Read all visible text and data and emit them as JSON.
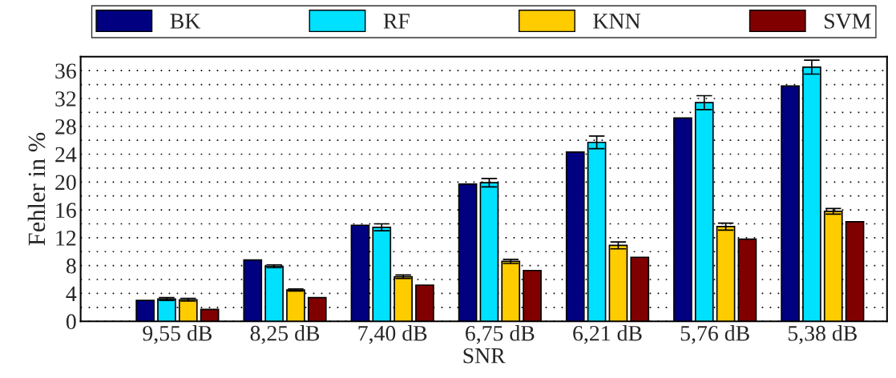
{
  "chart_data": {
    "type": "bar",
    "xlabel": "SNR",
    "ylabel": "Fehler in %",
    "categories": [
      "9,55 dB",
      "8,25 dB",
      "7,40 dB",
      "6,75 dB",
      "6,21 dB",
      "5,76 dB",
      "5,38 dB"
    ],
    "series": [
      {
        "name": "BK",
        "color": "#000080",
        "values": [
          3.0,
          8.8,
          13.8,
          19.7,
          24.3,
          29.2,
          33.8
        ]
      },
      {
        "name": "RF",
        "color": "#00e0ff",
        "values": [
          3.2,
          7.9,
          13.5,
          19.9,
          25.7,
          31.4,
          36.5
        ],
        "errors": [
          0.2,
          0.2,
          0.5,
          0.6,
          0.9,
          1.0,
          1.0
        ]
      },
      {
        "name": "KNN",
        "color": "#ffcc00",
        "values": [
          3.1,
          4.5,
          6.4,
          8.6,
          10.9,
          13.6,
          15.8
        ],
        "errors": [
          0.2,
          0.15,
          0.25,
          0.3,
          0.5,
          0.5,
          0.4
        ]
      },
      {
        "name": "SVM",
        "color": "#800000",
        "values": [
          1.7,
          3.4,
          5.2,
          7.3,
          9.2,
          11.8,
          14.3
        ]
      }
    ],
    "ylim": [
      0,
      38
    ],
    "yticks": [
      0,
      {
        "value": 2,
        "label": null
      },
      4,
      {
        "value": 6,
        "label": null
      },
      8,
      {
        "value": 10,
        "label": null
      },
      12,
      {
        "value": 14,
        "label": null
      },
      16,
      {
        "value": 18,
        "label": null
      },
      20,
      {
        "value": 22,
        "label": null
      },
      24,
      {
        "value": 26,
        "label": null
      },
      28,
      {
        "value": 30,
        "label": null
      },
      32,
      {
        "value": 34,
        "label": null
      },
      36
    ],
    "grid": "y",
    "legend": "top"
  }
}
